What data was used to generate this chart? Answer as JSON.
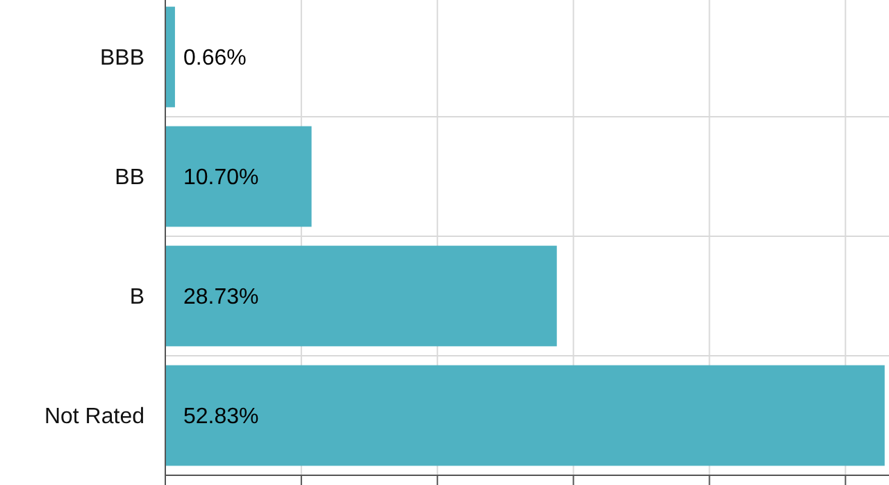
{
  "chart_data": {
    "type": "bar",
    "orientation": "horizontal",
    "categories": [
      "BBB",
      "BB",
      "B",
      "Not Rated"
    ],
    "values": [
      0.66,
      10.7,
      28.73,
      52.83
    ],
    "value_labels": [
      "0.66%",
      "10.70%",
      "28.73%",
      "52.83%"
    ],
    "color": "#4fb2c2",
    "xlim": [
      0,
      53.2
    ],
    "xticks": [
      {
        "value": 0,
        "label": null
      },
      {
        "value": 10,
        "label": null
      },
      {
        "value": 20,
        "label": null
      },
      {
        "value": 30,
        "label": null
      },
      {
        "value": 40,
        "label": null
      },
      {
        "value": 50,
        "label": null
      }
    ],
    "tick_labels": "y",
    "grid": true
  }
}
